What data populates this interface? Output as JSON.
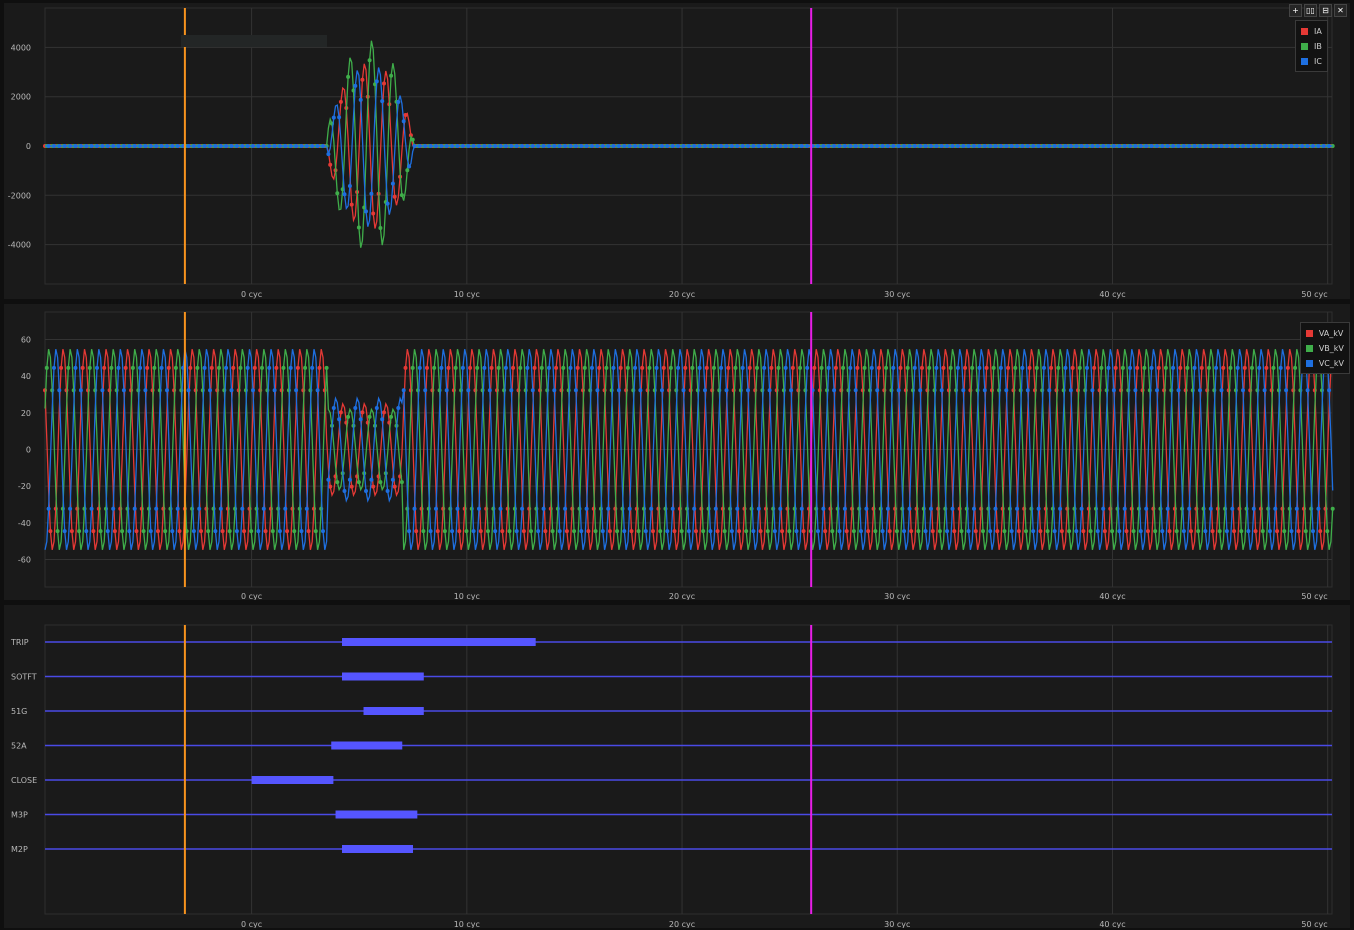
{
  "toolbar": {
    "add_icon": "+",
    "columns_icon": "▯▯",
    "rows_icon": "⊟",
    "close_icon": "✕"
  },
  "cursors": {
    "primary_color": "#f7931e",
    "primary_cycle": -3.1,
    "secondary_color": "#e81ee8",
    "secondary_cycle": 26.0
  },
  "chart_data": [
    {
      "type": "line",
      "xlim": [
        -9.6,
        50.2
      ],
      "ylim": [
        -5600,
        5600
      ],
      "x_ticks": [
        0,
        10,
        20,
        30,
        40,
        50
      ],
      "x_tick_labels": [
        "0 cyc",
        "10 cyc",
        "20 cyc",
        "30 cyc",
        "40 cyc",
        "50 cyc"
      ],
      "y_ticks": [
        4000,
        2000,
        0,
        -2000,
        -4000
      ],
      "y_tick_labels": [
        "4000",
        "2000",
        "0",
        "-2000",
        "-4000"
      ],
      "legend_position": "top-right",
      "grid": true,
      "series": [
        {
          "name": "IA",
          "color": "#e53935",
          "fault_start": 3.5,
          "fault_end": 7.5,
          "peak": 3400,
          "phase_deg": 0
        },
        {
          "name": "IB",
          "color": "#3fae4a",
          "fault_start": 3.5,
          "fault_end": 7.5,
          "peak": 4300,
          "phase_deg": -120
        },
        {
          "name": "IC",
          "color": "#1e6fe0",
          "fault_start": 3.5,
          "fault_end": 7.5,
          "peak": 3300,
          "phase_deg": 120
        }
      ]
    },
    {
      "type": "line",
      "xlim": [
        -9.6,
        50.2
      ],
      "ylim": [
        -75,
        75
      ],
      "x_ticks": [
        0,
        10,
        20,
        30,
        40,
        50
      ],
      "x_tick_labels": [
        "0 cyc",
        "10 cyc",
        "20 cyc",
        "30 cyc",
        "40 cyc",
        "50 cyc"
      ],
      "y_ticks": [
        60,
        40,
        20,
        0,
        -20,
        -40,
        -60
      ],
      "y_tick_labels": [
        "60",
        "40",
        "20",
        "0",
        "-20",
        "-40",
        "-60"
      ],
      "legend_position": "top-right",
      "grid": true,
      "series": [
        {
          "name": "VA_kV",
          "color": "#e53935",
          "peak": 55,
          "sag_peak": 25,
          "sag_start": 3.5,
          "sag_end": 7.0,
          "phase_deg": 0
        },
        {
          "name": "VB_kV",
          "color": "#3fae4a",
          "peak": 55,
          "sag_peak": 22,
          "sag_start": 3.5,
          "sag_end": 7.0,
          "phase_deg": -120
        },
        {
          "name": "VC_kV",
          "color": "#1e6fe0",
          "peak": 55,
          "sag_peak": 28,
          "sag_start": 3.5,
          "sag_end": 7.0,
          "phase_deg": 120
        }
      ]
    },
    {
      "type": "digital",
      "xlim": [
        -9.6,
        50.2
      ],
      "x_ticks": [
        0,
        10,
        20,
        30,
        40,
        50
      ],
      "x_tick_labels": [
        "0 cyc",
        "10 cyc",
        "20 cyc",
        "30 cyc",
        "40 cyc",
        "50 cyc"
      ],
      "grid": true,
      "line_color": "#4a4ae6",
      "bar_color": "#5555ff",
      "channels": [
        {
          "name": "TRIP",
          "on": 4.2,
          "off": 13.2
        },
        {
          "name": "SOTFT",
          "on": 4.2,
          "off": 8.0
        },
        {
          "name": "51G",
          "on": 5.2,
          "off": 8.0
        },
        {
          "name": "52A",
          "on": 3.7,
          "off": 7.0
        },
        {
          "name": "CLOSE",
          "on": 0.0,
          "off": 3.8
        },
        {
          "name": "M3P",
          "on": 3.9,
          "off": 7.7
        },
        {
          "name": "M2P",
          "on": 4.2,
          "off": 7.5
        }
      ]
    }
  ]
}
